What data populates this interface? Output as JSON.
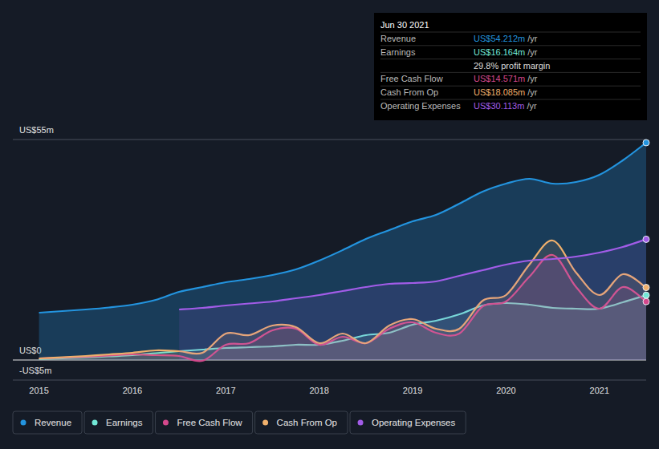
{
  "chart_data": {
    "type": "line",
    "x": [
      2015,
      2015.25,
      2015.5,
      2015.75,
      2016,
      2016.25,
      2016.5,
      2016.75,
      2017,
      2017.25,
      2017.5,
      2017.75,
      2018,
      2018.25,
      2018.5,
      2018.75,
      2019,
      2019.25,
      2019.5,
      2019.75,
      2020,
      2020.25,
      2020.5,
      2020.75,
      2021,
      2021.25,
      2021.5
    ],
    "series": [
      {
        "name": "Revenue",
        "color": "#2394df",
        "values": [
          11.8,
          12.2,
          12.6,
          13.1,
          13.8,
          15,
          17,
          18.2,
          19.4,
          20.2,
          21.2,
          22.6,
          24.8,
          27.4,
          30.2,
          32.4,
          34.6,
          36.2,
          39,
          42,
          44,
          45.2,
          44,
          44.4,
          46.2,
          49.8,
          54.212
        ]
      },
      {
        "name": "Earnings",
        "color": "#71e7d6",
        "values": [
          0.2,
          0.4,
          0.6,
          0.9,
          1.2,
          1.7,
          2.2,
          2.6,
          3,
          3.2,
          3.4,
          3.8,
          3.8,
          4.8,
          6.2,
          6.8,
          8.8,
          9.8,
          11.4,
          13.6,
          14.2,
          13.8,
          13,
          12.8,
          12.8,
          14.4,
          16.164
        ]
      },
      {
        "name": "Free Cash Flow",
        "color": "#d4488c",
        "values": [
          0.4,
          0.6,
          0.8,
          1.1,
          1.4,
          1.2,
          1,
          -0.2,
          3.8,
          4.2,
          7.4,
          7.8,
          3.8,
          5.8,
          4.2,
          7.8,
          9.4,
          6.8,
          6.6,
          13.4,
          14.6,
          20.8,
          26.2,
          18.2,
          12.8,
          18.2,
          14.571
        ]
      },
      {
        "name": "Cash From Op",
        "color": "#f0b06c",
        "values": [
          0.4,
          0.7,
          1,
          1.4,
          1.8,
          2.4,
          2.2,
          1.8,
          6.6,
          6.2,
          8.6,
          8.2,
          4.2,
          6.6,
          4.2,
          8.6,
          10.2,
          7.8,
          7.8,
          14.8,
          16.2,
          23.8,
          29.8,
          21.8,
          16.2,
          21.4,
          18.085
        ]
      },
      {
        "name": "Operating Expenses",
        "color": "#a25ce8",
        "values": [
          null,
          null,
          null,
          null,
          null,
          null,
          12.6,
          13,
          13.6,
          14.1,
          14.6,
          15.4,
          16.2,
          17.2,
          18.2,
          19,
          19.2,
          19.6,
          21,
          22.4,
          23.8,
          24.8,
          25.2,
          25.8,
          26.8,
          28.2,
          30.113
        ]
      }
    ],
    "xlim": [
      2014.72,
      2021.5
    ],
    "xticks": [
      2015,
      2016,
      2017,
      2018,
      2019,
      2020,
      2021
    ],
    "ylim": [
      -5,
      55
    ],
    "yticks": [
      {
        "value": 55,
        "label": "US$55m"
      },
      {
        "value": 0,
        "label": "US$0"
      },
      {
        "value": -5,
        "label": "-US$5m"
      }
    ],
    "grid": true,
    "legend": "bottom",
    "annotation": {
      "date": "Jun 30 2021",
      "rows": [
        {
          "label": "Revenue",
          "value": "US$54.212m",
          "unit": "/yr"
        },
        {
          "label": "Earnings",
          "value": "US$16.164m",
          "unit": "/yr"
        },
        {
          "value": "29.8% profit margin"
        },
        {
          "label": "Free Cash Flow",
          "value": "US$14.571m",
          "unit": "/yr"
        },
        {
          "label": "Cash From Op",
          "value": "US$18.085m",
          "unit": "/yr"
        },
        {
          "label": "Operating Expenses",
          "value": "US$30.113m",
          "unit": "/yr"
        }
      ]
    }
  }
}
